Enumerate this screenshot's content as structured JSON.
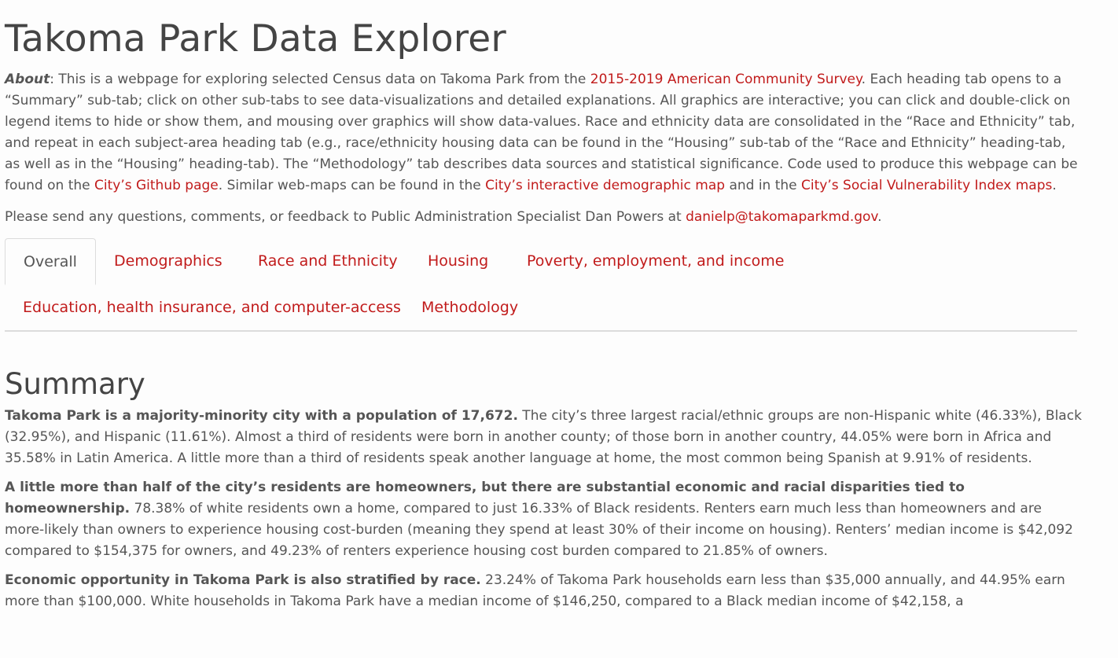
{
  "page": {
    "title": "Takoma Park Data Explorer"
  },
  "about": {
    "label": "About",
    "text1": ": This is a webpage for exploring selected Census data on Takoma Park from the ",
    "link_acs": "2015-2019 American Community Survey",
    "text2": ". Each heading tab opens to a “Summary” sub-tab; click on other sub-tabs to see data-visualizations and detailed explanations. All graphics are interactive; you can click and double-click on legend items to hide or show them, and mousing over graphics will show data-values. Race and ethnicity data are consolidated in the “Race and Ethnicity” tab, and repeat in each subject-area heading tab (e.g., race/ethnicity housing data can be found in the “Housing” sub-tab of the “Race and Ethnicity” heading-tab, as well as in the “Housing” heading-tab). The “Methodology” tab describes data sources and statistical significance. Code used to produce this webpage can be found on the ",
    "link_github": "City’s Github page",
    "text3": ". Similar web-maps can be found in the ",
    "link_map": "City’s interactive demographic map",
    "text4": " and in the ",
    "link_svi": "City’s Social Vulnerability Index maps",
    "text5": "."
  },
  "contact": {
    "text": "Please send any questions, comments, or feedback to Public Administration Specialist Dan Powers at ",
    "email": "danielp@takomaparkmd.gov",
    "end": "."
  },
  "tabs": [
    {
      "label": "Overall",
      "active": true
    },
    {
      "label": "Demographics",
      "active": false
    },
    {
      "label": "Race and Ethnicity",
      "active": false
    },
    {
      "label": "Housing",
      "active": false
    },
    {
      "label": "Poverty, employment, and income",
      "active": false
    },
    {
      "label": "Education, health insurance, and computer-access",
      "active": false
    },
    {
      "label": "Methodology",
      "active": false
    }
  ],
  "summary": {
    "heading": "Summary",
    "p1_bold": "Takoma Park is a majority-minority city with a population of 17,672.",
    "p1_text": " The city’s three largest racial/ethnic groups are non-Hispanic white (46.33%), Black (32.95%), and Hispanic (11.61%). Almost a third of residents were born in another county; of those born in another country, 44.05% were born in Africa and 35.58% in Latin America. A little more than a third of residents speak another language at home, the most common being Spanish at 9.91% of residents.",
    "p2_bold": "A little more than half of the city’s residents are homeowners, but there are substantial economic and racial disparities tied to homeownership.",
    "p2_text": " 78.38% of white residents own a home, compared to just 16.33% of Black residents. Renters earn much less than homeowners and are more-likely than owners to experience housing cost-burden (meaning they spend at least 30% of their income on housing). Renters’ median income is $42,092 compared to $154,375 for owners, and 49.23% of renters experience housing cost burden compared to 21.85% of owners.",
    "p3_bold": "Economic opportunity in Takoma Park is also stratified by race.",
    "p3_text": " 23.24% of Takoma Park households earn less than $35,000 annually, and 44.95% earn more than $100,000. White households in Takoma Park have a median income of $146,250, compared to a Black median income of $42,158, a"
  }
}
